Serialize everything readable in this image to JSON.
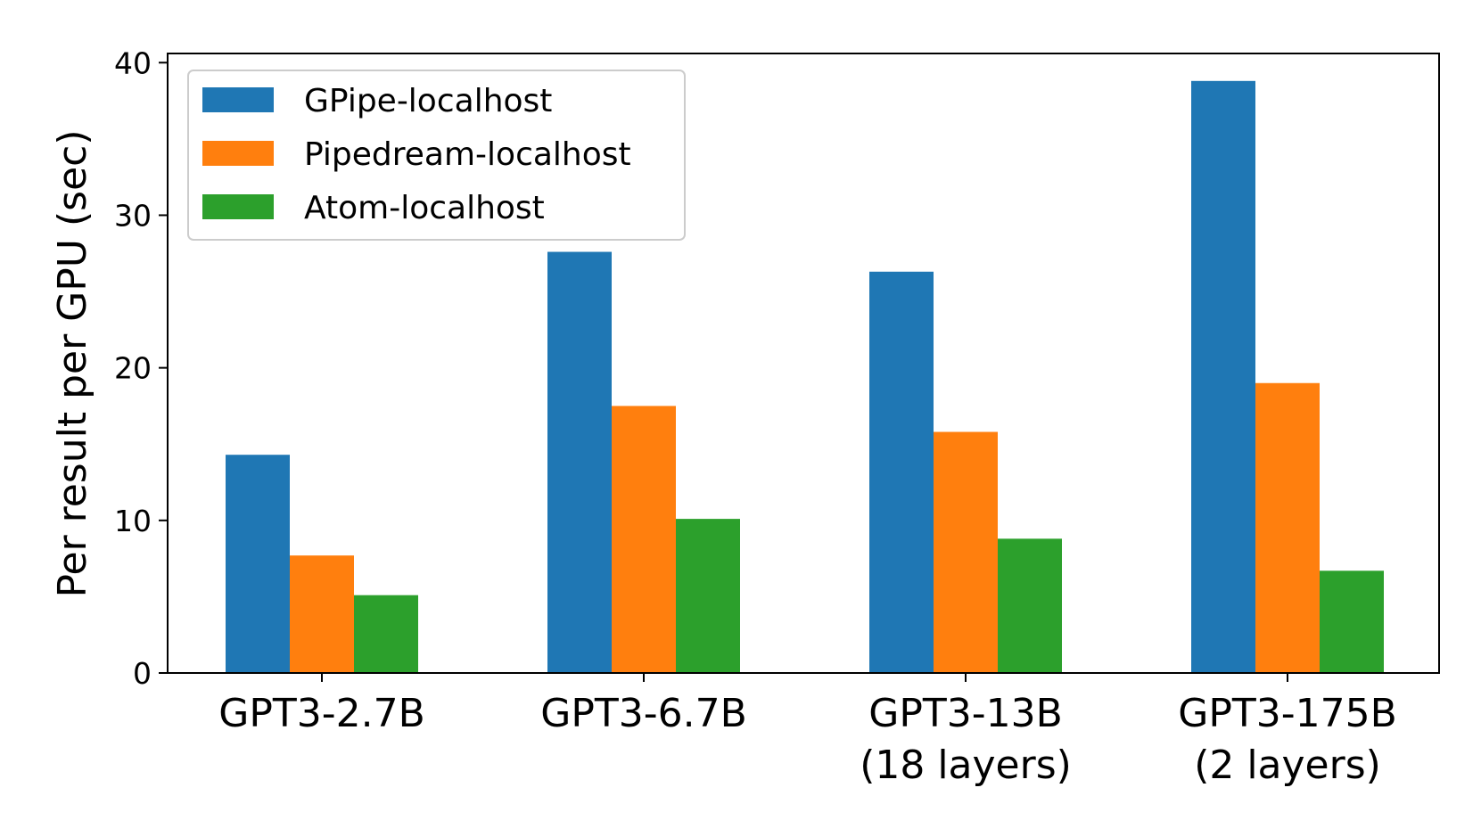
{
  "chart_data": {
    "type": "bar",
    "categories": [
      [
        "GPT3-2.7B"
      ],
      [
        "GPT3-6.7B"
      ],
      [
        "GPT3-13B",
        "(18 layers)"
      ],
      [
        "GPT3-175B",
        "(2 layers)"
      ]
    ],
    "series": [
      {
        "name": "GPipe-localhost",
        "color": "#1f77b4",
        "values": [
          14.3,
          27.6,
          26.3,
          38.8
        ]
      },
      {
        "name": "Pipedream-localhost",
        "color": "#ff7f0e",
        "values": [
          7.7,
          17.5,
          15.8,
          19.0
        ]
      },
      {
        "name": "Atom-localhost",
        "color": "#2ca02c",
        "values": [
          5.1,
          10.1,
          8.8,
          6.7
        ]
      }
    ],
    "title": "",
    "xlabel": "",
    "ylabel": "Per result per GPU (sec)",
    "ylim": [
      0,
      40.6
    ],
    "yticks": [
      0,
      10,
      20,
      30,
      40
    ],
    "grid": false,
    "legend_position": "top-left"
  }
}
